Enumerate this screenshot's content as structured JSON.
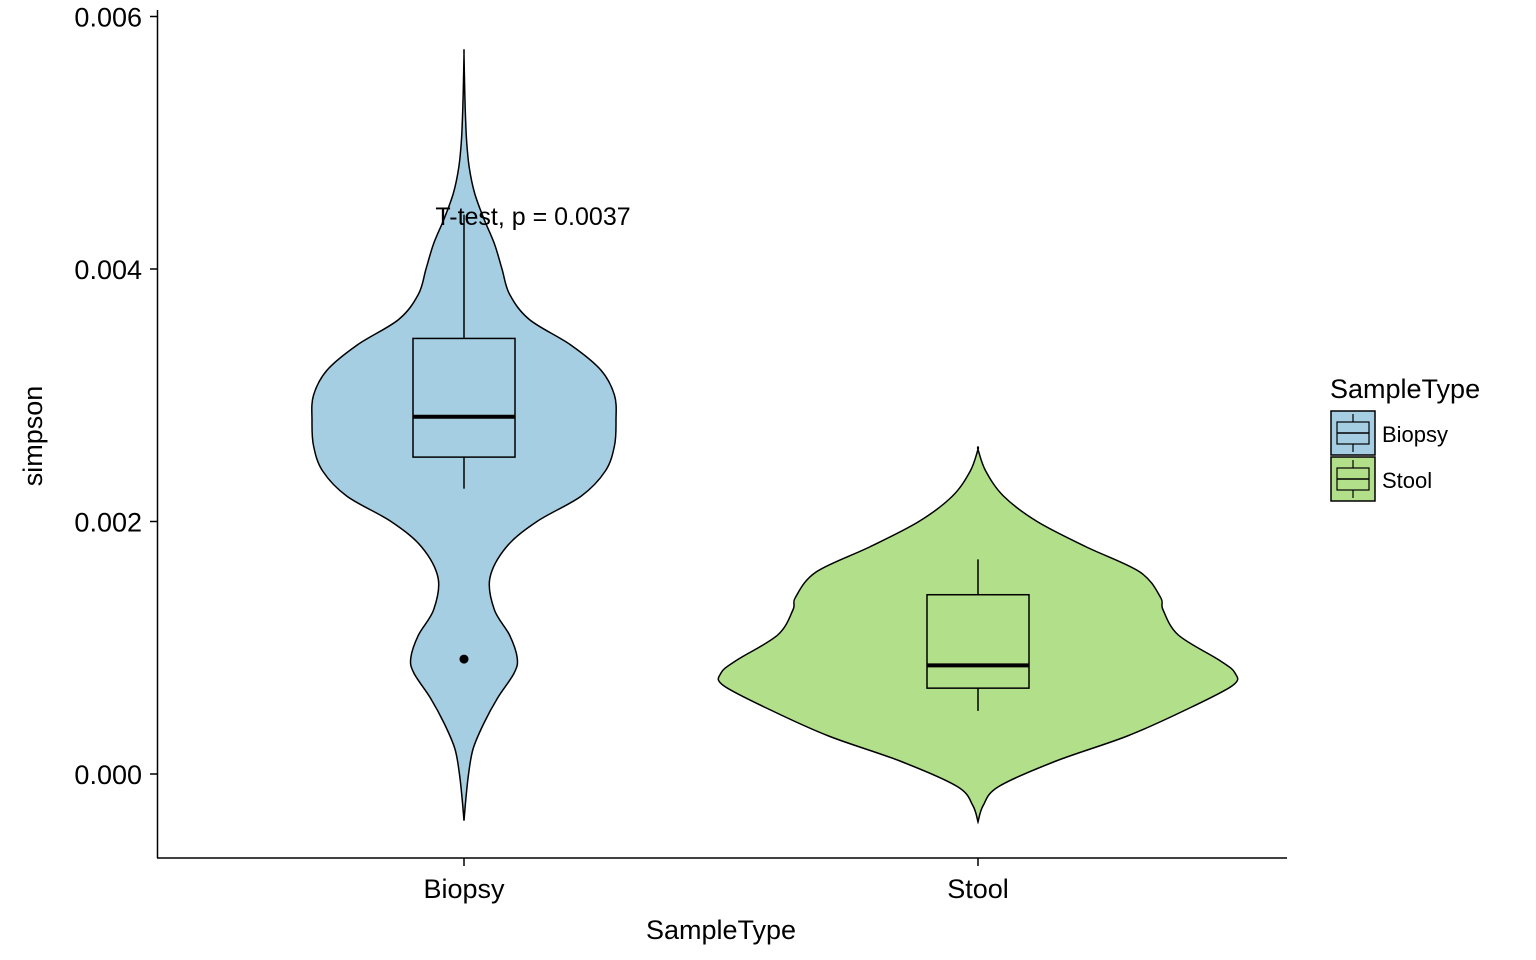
{
  "chart_data": {
    "type": "violin",
    "xlabel": "SampleType",
    "ylabel": "simpson",
    "categories": [
      "Biopsy",
      "Stool"
    ],
    "ylim": [
      -0.00065,
      0.006
    ],
    "y_ticks": [
      0.0,
      0.002,
      0.004,
      0.006
    ],
    "y_tick_labels": [
      "0.000",
      "0.002",
      "0.004",
      "0.006"
    ],
    "grid": false,
    "legend": {
      "title": "SampleType",
      "position": "right",
      "entries": [
        "Biopsy",
        "Stool"
      ]
    },
    "colors": {
      "Biopsy": "#a6cee3",
      "Stool": "#b2df8a"
    },
    "annotation": "T-test, p = 0.0037",
    "annotation_position": [
      0.0044
    ],
    "series": [
      {
        "category": "Biopsy",
        "box": {
          "min": 0.00226,
          "q1": 0.00251,
          "median": 0.00283,
          "q3": 0.00345,
          "max": 0.00443
        },
        "outliers": [
          0.00091
        ],
        "violin_range": [
          -0.00037,
          0.0057
        ],
        "density_profile": [
          [
            -0.00037,
            0.0
          ],
          [
            -0.0002,
            0.012
          ],
          [
            0.0,
            0.03
          ],
          [
            0.0002,
            0.06
          ],
          [
            0.0004,
            0.13
          ],
          [
            0.0006,
            0.22
          ],
          [
            0.0008,
            0.33
          ],
          [
            0.00092,
            0.35
          ],
          [
            0.0011,
            0.3
          ],
          [
            0.0013,
            0.2
          ],
          [
            0.00155,
            0.17
          ],
          [
            0.0018,
            0.28
          ],
          [
            0.002,
            0.48
          ],
          [
            0.0022,
            0.77
          ],
          [
            0.0024,
            0.93
          ],
          [
            0.0026,
            0.99
          ],
          [
            0.0028,
            1.0
          ],
          [
            0.003,
            0.99
          ],
          [
            0.0032,
            0.9
          ],
          [
            0.0034,
            0.7
          ],
          [
            0.0036,
            0.43
          ],
          [
            0.0038,
            0.3
          ],
          [
            0.004,
            0.25
          ],
          [
            0.0042,
            0.2
          ],
          [
            0.0044,
            0.13
          ],
          [
            0.0046,
            0.07
          ],
          [
            0.0048,
            0.035
          ],
          [
            0.005,
            0.018
          ],
          [
            0.0052,
            0.01
          ],
          [
            0.0054,
            0.005
          ],
          [
            0.0057,
            0.0
          ]
        ]
      },
      {
        "category": "Stool",
        "box": {
          "min": 0.0005,
          "q1": 0.00068,
          "median": 0.00086,
          "q3": 0.00142,
          "max": 0.0017
        },
        "outliers": [],
        "violin_range": [
          -0.00038,
          0.00257
        ],
        "density_profile": [
          [
            -0.00038,
            0.0
          ],
          [
            -0.00025,
            0.02
          ],
          [
            -0.0001,
            0.08
          ],
          [
            0.0001,
            0.3
          ],
          [
            0.0003,
            0.58
          ],
          [
            0.0005,
            0.8
          ],
          [
            0.0007,
            0.99
          ],
          [
            0.0008,
            1.0
          ],
          [
            0.0009,
            0.94
          ],
          [
            0.0011,
            0.78
          ],
          [
            0.0013,
            0.72
          ],
          [
            0.0014,
            0.71
          ],
          [
            0.0016,
            0.63
          ],
          [
            0.0018,
            0.42
          ],
          [
            0.002,
            0.23
          ],
          [
            0.0022,
            0.1
          ],
          [
            0.0024,
            0.03
          ],
          [
            0.00257,
            0.0
          ]
        ]
      }
    ]
  }
}
